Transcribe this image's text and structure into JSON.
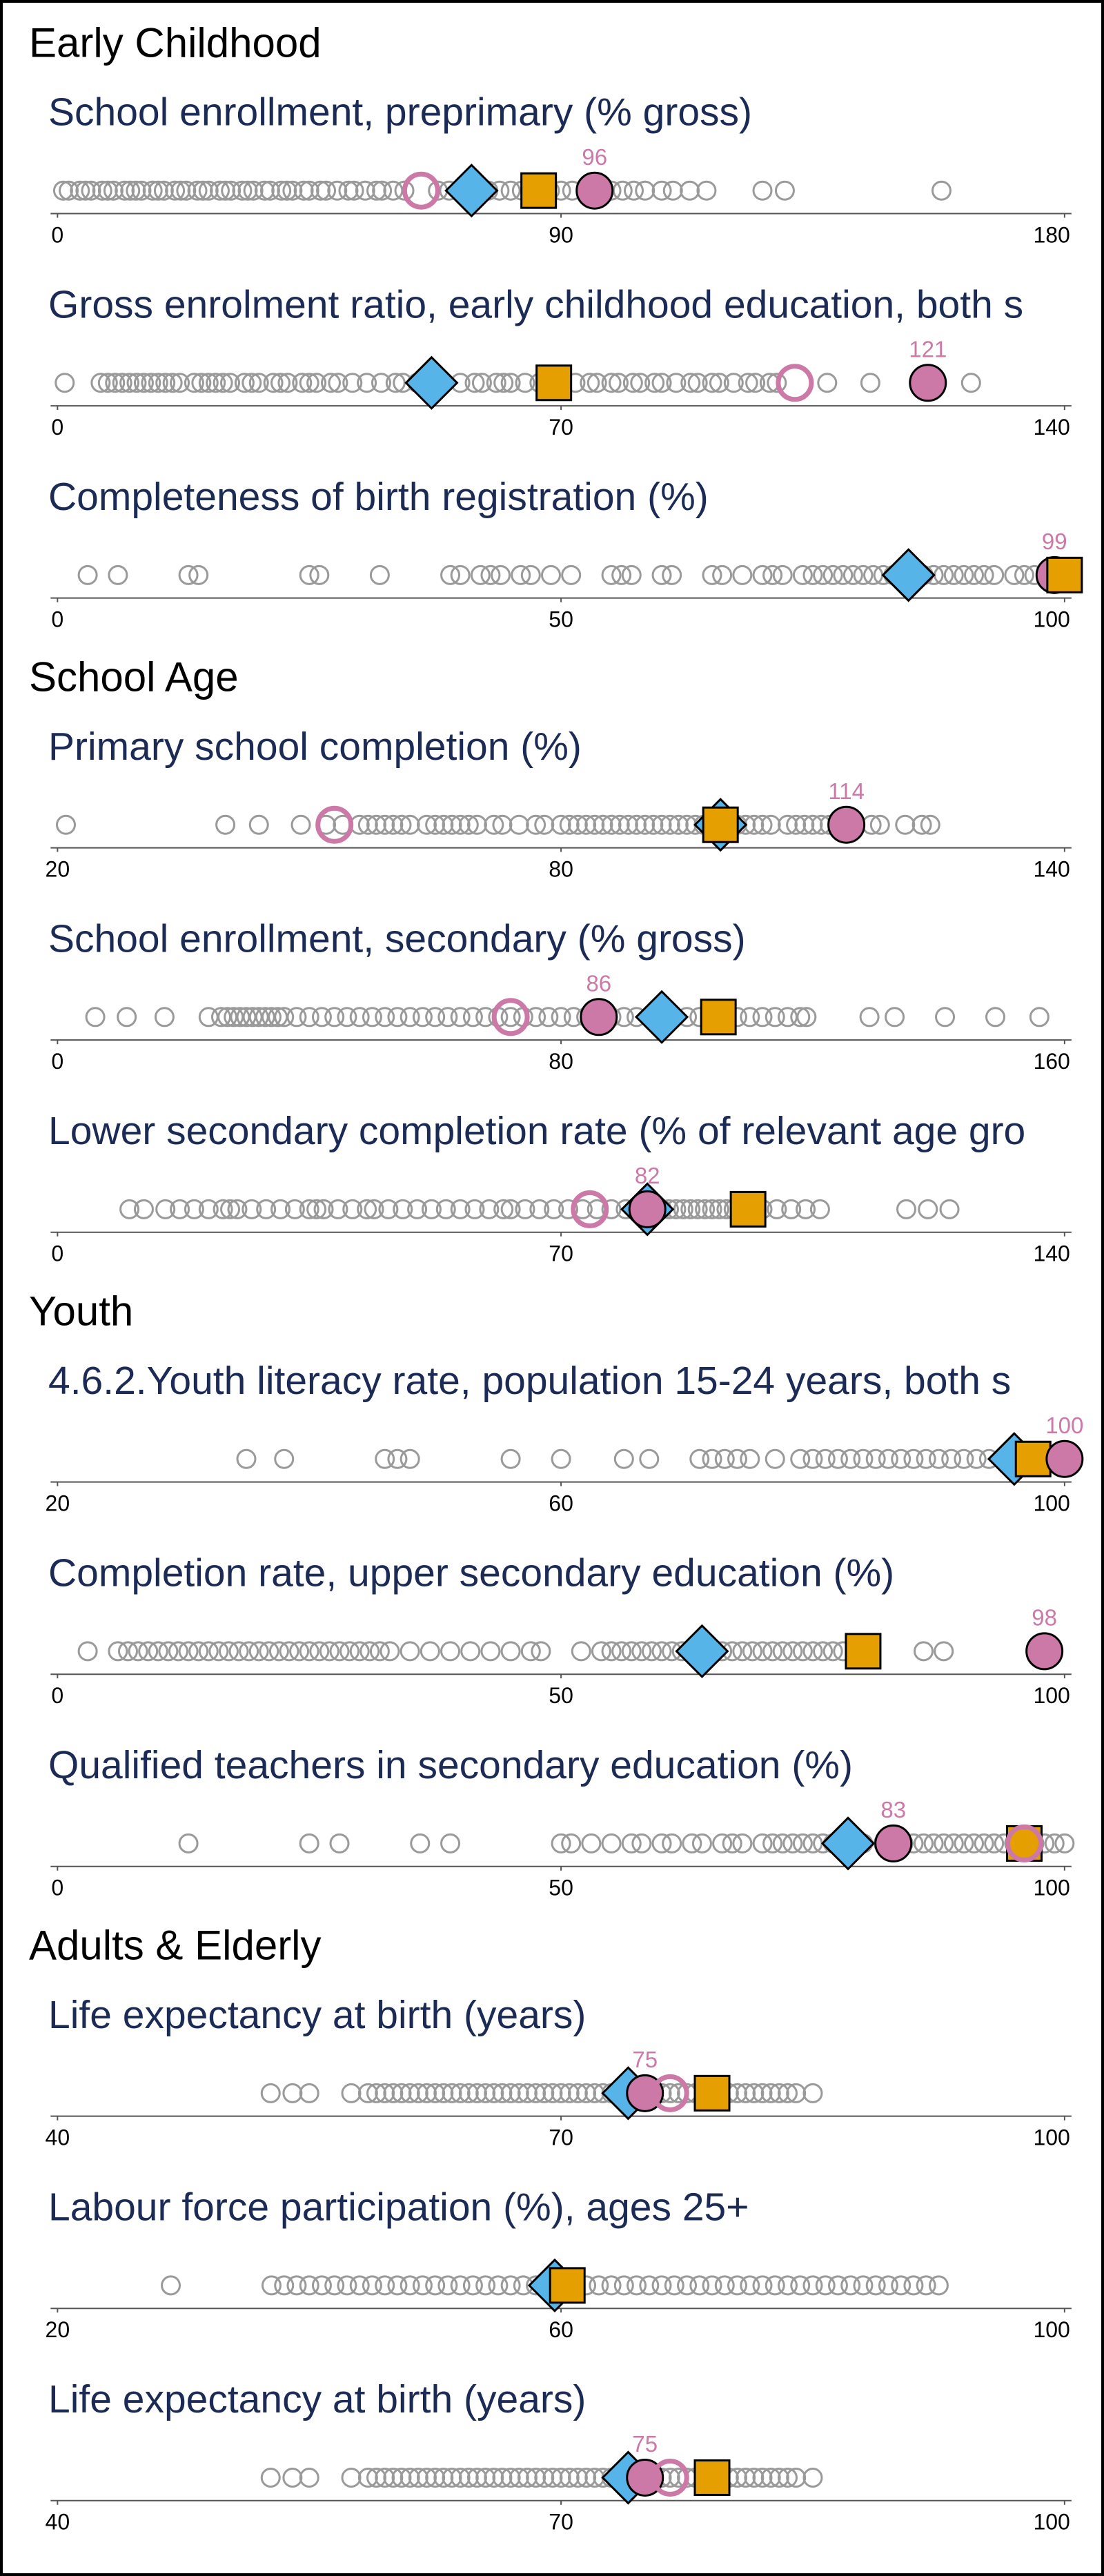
{
  "chart_data": [
    {
      "type": "strip",
      "section": "Early Childhood",
      "title": "School enrollment, preprimary (% gross)",
      "xlim": [
        0,
        180
      ],
      "xticks": [
        0,
        90,
        180
      ],
      "points_color": "#9a9a9a",
      "points": [
        1,
        2,
        4,
        5,
        6,
        8,
        9,
        10,
        12,
        13,
        14,
        15,
        17,
        18,
        19,
        21,
        22,
        23,
        25,
        26,
        27,
        29,
        30,
        31,
        33,
        34,
        35,
        37,
        38,
        40,
        41,
        42,
        44,
        45,
        47,
        48,
        50,
        52,
        53,
        55,
        57,
        58,
        60,
        62,
        68,
        70,
        72,
        75,
        77,
        79,
        81,
        83,
        85,
        88,
        90,
        92,
        99,
        101,
        103,
        105,
        108,
        110,
        113,
        116,
        126,
        130,
        158
      ],
      "series": [
        {
          "marker": "ring",
          "color": "#cc79a7",
          "values": [
            65
          ]
        },
        {
          "marker": "diamond",
          "color": "#56b4e9",
          "values": [
            74
          ]
        },
        {
          "marker": "square",
          "color": "#e69f00",
          "values": [
            86
          ]
        },
        {
          "marker": "circle",
          "color": "#cc79a7",
          "values": [
            96
          ],
          "labeled": true
        }
      ]
    },
    {
      "type": "strip",
      "title": "Gross enrolment ratio, early childhood education, both s",
      "xlim": [
        0,
        140
      ],
      "xticks": [
        0,
        70,
        140
      ],
      "points_color": "#9a9a9a",
      "points": [
        1,
        6,
        7,
        8,
        9,
        10,
        11,
        12,
        13,
        14,
        15,
        16,
        17,
        19,
        20,
        21,
        22,
        23,
        24,
        26,
        27,
        28,
        30,
        31,
        32,
        34,
        35,
        36,
        38,
        39,
        41,
        43,
        45,
        47,
        48,
        50,
        56,
        58,
        59,
        61,
        62,
        63,
        65,
        67,
        72,
        74,
        75,
        77,
        78,
        80,
        81,
        83,
        84,
        86,
        88,
        89,
        91,
        92,
        94,
        96,
        97,
        99,
        100,
        107,
        113,
        127
      ],
      "series": [
        {
          "marker": "ring",
          "color": "#cc79a7",
          "values": [
            102.5
          ]
        },
        {
          "marker": "diamond",
          "color": "#56b4e9",
          "values": [
            52
          ]
        },
        {
          "marker": "square",
          "color": "#e69f00",
          "values": [
            69
          ]
        },
        {
          "marker": "circle",
          "color": "#cc79a7",
          "values": [
            121
          ],
          "labeled": true
        }
      ]
    },
    {
      "type": "strip",
      "title": "Completeness of birth registration (%)",
      "xlim": [
        0,
        100
      ],
      "xticks": [
        0,
        50,
        100
      ],
      "points_color": "#9a9a9a",
      "points": [
        3,
        6,
        13,
        14,
        25,
        26,
        32,
        39,
        40,
        42,
        43,
        44,
        46,
        47,
        49,
        51,
        55,
        56,
        57,
        60,
        61,
        65,
        66,
        68,
        70,
        71,
        72,
        74,
        75,
        76,
        77,
        78,
        79,
        80,
        81,
        82,
        83,
        84,
        85,
        86,
        87,
        88,
        89,
        90,
        91,
        92,
        93,
        95,
        96,
        97,
        99
      ],
      "series": [
        {
          "marker": "diamond",
          "color": "#56b4e9",
          "values": [
            84.5
          ]
        },
        {
          "marker": "circle",
          "color": "#cc79a7",
          "values": [
            99
          ],
          "labeled": true
        },
        {
          "marker": "square",
          "color": "#e69f00",
          "values": [
            100
          ]
        }
      ]
    },
    {
      "type": "strip",
      "section": "School Age",
      "title": "Primary school completion (%)",
      "xlim": [
        20,
        140
      ],
      "xticks": [
        20,
        80,
        140
      ],
      "points_color": "#9a9a9a",
      "points": [
        21,
        40,
        44,
        49,
        52,
        54,
        56,
        57,
        58,
        59,
        60,
        61,
        62,
        64,
        65,
        66,
        67,
        68,
        69,
        70,
        72,
        73,
        75,
        77,
        78,
        80,
        81,
        82,
        83,
        84,
        85,
        86,
        87,
        88,
        89,
        90,
        91,
        92,
        93,
        94,
        95,
        96,
        97,
        98,
        100,
        101,
        102,
        103,
        104,
        105,
        107,
        108,
        109,
        110,
        111,
        112,
        113,
        115,
        117,
        118,
        121,
        123,
        124
      ],
      "series": [
        {
          "marker": "ring",
          "color": "#cc79a7",
          "values": [
            53
          ]
        },
        {
          "marker": "diamond",
          "color": "#56b4e9",
          "values": [
            99
          ]
        },
        {
          "marker": "square",
          "color": "#e69f00",
          "values": [
            99
          ]
        },
        {
          "marker": "circle",
          "color": "#cc79a7",
          "values": [
            114
          ],
          "labeled": true
        }
      ]
    },
    {
      "type": "strip",
      "title": "School enrollment, secondary (% gross)",
      "xlim": [
        0,
        160
      ],
      "xticks": [
        0,
        80,
        160
      ],
      "points_color": "#9a9a9a",
      "points": [
        6,
        11,
        17,
        24,
        26,
        27,
        28,
        29,
        30,
        31,
        32,
        33,
        34,
        35,
        36,
        38,
        40,
        42,
        44,
        46,
        48,
        50,
        52,
        54,
        56,
        58,
        60,
        62,
        64,
        66,
        68,
        70,
        72,
        74,
        76,
        78,
        80,
        82,
        84,
        86,
        88,
        90,
        92,
        94,
        96,
        98,
        100,
        102,
        104,
        106,
        108,
        110,
        112,
        114,
        116,
        118,
        119,
        129,
        133,
        141,
        149,
        156
      ],
      "series": [
        {
          "marker": "ring",
          "color": "#cc79a7",
          "values": [
            72
          ]
        },
        {
          "marker": "circle",
          "color": "#cc79a7",
          "values": [
            86
          ],
          "labeled": true
        },
        {
          "marker": "diamond",
          "color": "#56b4e9",
          "values": [
            96
          ]
        },
        {
          "marker": "square",
          "color": "#e69f00",
          "values": [
            105
          ]
        }
      ]
    },
    {
      "type": "strip",
      "title": "Lower secondary completion rate (% of relevant age gro",
      "xlim": [
        0,
        140
      ],
      "xticks": [
        0,
        70,
        140
      ],
      "points_color": "#9a9a9a",
      "points": [
        10,
        12,
        15,
        17,
        19,
        21,
        23,
        24,
        25,
        27,
        29,
        31,
        33,
        35,
        36,
        37,
        39,
        41,
        43,
        44,
        46,
        48,
        50,
        52,
        54,
        56,
        58,
        60,
        62,
        63,
        65,
        67,
        69,
        71,
        73,
        75,
        77,
        79,
        81,
        83,
        84,
        85,
        86,
        87,
        88,
        89,
        90,
        91,
        92,
        93,
        94,
        95,
        96,
        97,
        98,
        100,
        102,
        104,
        106,
        118,
        121,
        124
      ],
      "series": [
        {
          "marker": "ring",
          "color": "#cc79a7",
          "values": [
            74
          ]
        },
        {
          "marker": "diamond",
          "color": "#56b4e9",
          "values": [
            82
          ]
        },
        {
          "marker": "circle",
          "color": "#cc79a7",
          "values": [
            82
          ],
          "labeled": true
        },
        {
          "marker": "square",
          "color": "#e69f00",
          "values": [
            96
          ]
        }
      ]
    },
    {
      "type": "strip",
      "section": "Youth",
      "title": "4.6.2.Youth literacy rate, population 15-24 years, both s",
      "xlim": [
        20,
        100
      ],
      "xticks": [
        20,
        60,
        100
      ],
      "points_color": "#9a9a9a",
      "points": [
        35,
        38,
        46,
        47,
        48,
        56,
        60,
        65,
        67,
        71,
        72,
        73,
        74,
        75,
        77,
        79,
        80,
        81,
        82,
        83,
        84,
        85,
        86,
        87,
        88,
        89,
        90,
        91,
        92,
        93,
        94,
        95,
        96,
        97,
        98,
        99
      ],
      "series": [
        {
          "marker": "diamond",
          "color": "#56b4e9",
          "values": [
            96
          ]
        },
        {
          "marker": "square",
          "color": "#e69f00",
          "values": [
            97.5
          ]
        },
        {
          "marker": "circle",
          "color": "#cc79a7",
          "values": [
            100
          ],
          "labeled": true
        }
      ]
    },
    {
      "type": "strip",
      "title": "Completion rate, upper secondary education (%)",
      "xlim": [
        0,
        100
      ],
      "xticks": [
        0,
        50,
        100
      ],
      "points_color": "#9a9a9a",
      "points": [
        3,
        6,
        7,
        8,
        9,
        10,
        11,
        12,
        13,
        14,
        15,
        16,
        17,
        18,
        19,
        20,
        21,
        22,
        23,
        24,
        25,
        26,
        27,
        28,
        29,
        30,
        31,
        32,
        33,
        35,
        37,
        39,
        41,
        43,
        45,
        47,
        48,
        52,
        54,
        55,
        56,
        57,
        58,
        59,
        60,
        61,
        62,
        63,
        65,
        66,
        67,
        68,
        69,
        70,
        71,
        72,
        73,
        74,
        75,
        76,
        77,
        78,
        86,
        88
      ],
      "series": [
        {
          "marker": "diamond",
          "color": "#56b4e9",
          "values": [
            64
          ]
        },
        {
          "marker": "square",
          "color": "#e69f00",
          "values": [
            80
          ]
        },
        {
          "marker": "circle",
          "color": "#cc79a7",
          "values": [
            98
          ],
          "labeled": true
        }
      ]
    },
    {
      "type": "strip",
      "title": "Qualified teachers in secondary education (%)",
      "xlim": [
        0,
        100
      ],
      "xticks": [
        0,
        50,
        100
      ],
      "points_color": "#9a9a9a",
      "points": [
        13,
        25,
        28,
        36,
        39,
        50,
        51,
        53,
        55,
        57,
        58,
        60,
        61,
        63,
        64,
        66,
        67,
        68,
        70,
        71,
        72,
        73,
        74,
        75,
        76,
        77,
        78,
        80,
        82,
        84,
        85,
        86,
        87,
        88,
        89,
        90,
        91,
        92,
        93,
        94,
        95,
        96,
        97,
        98,
        99,
        100
      ],
      "series": [
        {
          "marker": "square",
          "color": "#e69f00",
          "values": [
            96
          ]
        },
        {
          "marker": "ring",
          "color": "#cc79a7",
          "values": [
            96
          ]
        },
        {
          "marker": "diamond",
          "color": "#56b4e9",
          "values": [
            78.5
          ]
        },
        {
          "marker": "circle",
          "color": "#cc79a7",
          "values": [
            83
          ],
          "labeled": true
        }
      ]
    },
    {
      "type": "strip",
      "section": "Adults & Elderly",
      "title": "Life expectancy at birth (years)",
      "xlim": [
        40,
        100
      ],
      "xticks": [
        40,
        70,
        100
      ],
      "points_color": "#9a9a9a",
      "points": [
        52.7,
        54,
        55,
        57.5,
        58.5,
        59,
        59.5,
        60,
        60.5,
        61,
        61.5,
        62,
        62.5,
        63,
        63.5,
        64,
        64.5,
        65,
        65.5,
        66,
        66.5,
        67,
        67.5,
        68,
        68.5,
        69,
        69.5,
        70,
        70.5,
        71,
        71.5,
        72,
        72.5,
        73,
        73.5,
        74,
        74.5,
        75,
        75.5,
        76,
        76.5,
        77,
        77.5,
        78,
        78.5,
        79,
        79.5,
        80,
        80.5,
        81,
        81.5,
        82,
        82.5,
        83,
        83.5,
        84,
        85
      ],
      "series": [
        {
          "marker": "diamond",
          "color": "#56b4e9",
          "values": [
            74
          ]
        },
        {
          "marker": "circle",
          "color": "#cc79a7",
          "values": [
            75
          ],
          "labeled": true
        },
        {
          "marker": "ring",
          "color": "#cc79a7",
          "values": [
            76.5
          ]
        },
        {
          "marker": "square",
          "color": "#e69f00",
          "values": [
            79
          ]
        }
      ]
    },
    {
      "type": "strip",
      "title": "Labour force participation (%), ages 25+",
      "xlim": [
        20,
        100
      ],
      "xticks": [
        20,
        60,
        100
      ],
      "points_color": "#9a9a9a",
      "points": [
        29,
        37,
        38,
        39,
        40,
        41,
        42,
        43,
        44,
        45,
        46,
        47,
        48,
        49,
        50,
        51,
        52,
        53,
        54,
        55,
        56,
        57,
        58,
        59,
        60,
        61,
        62,
        63,
        64,
        65,
        66,
        67,
        68,
        69,
        70,
        71,
        72,
        73,
        74,
        75,
        76,
        77,
        78,
        79,
        80,
        81,
        82,
        83,
        84,
        85,
        86,
        87,
        88,
        89,
        90
      ],
      "series": [
        {
          "marker": "diamond",
          "color": "#56b4e9",
          "values": [
            59.5
          ]
        },
        {
          "marker": "square",
          "color": "#e69f00",
          "values": [
            60.5
          ]
        }
      ]
    },
    {
      "type": "strip",
      "title": "Life expectancy at birth (years)",
      "xlim": [
        40,
        100
      ],
      "xticks": [
        40,
        70,
        100
      ],
      "points_color": "#9a9a9a",
      "points": [
        52.7,
        54,
        55,
        57.5,
        58.5,
        59,
        59.5,
        60,
        60.5,
        61,
        61.5,
        62,
        62.5,
        63,
        63.5,
        64,
        64.5,
        65,
        65.5,
        66,
        66.5,
        67,
        67.5,
        68,
        68.5,
        69,
        69.5,
        70,
        70.5,
        71,
        71.5,
        72,
        72.5,
        73,
        73.5,
        74,
        74.5,
        75,
        75.5,
        76,
        76.5,
        77,
        77.5,
        78,
        78.5,
        79,
        79.5,
        80,
        80.5,
        81,
        81.5,
        82,
        82.5,
        83,
        83.5,
        84,
        85
      ],
      "series": [
        {
          "marker": "diamond",
          "color": "#56b4e9",
          "values": [
            74
          ]
        },
        {
          "marker": "circle",
          "color": "#cc79a7",
          "values": [
            75
          ],
          "labeled": true
        },
        {
          "marker": "ring",
          "color": "#cc79a7",
          "values": [
            76.5
          ]
        },
        {
          "marker": "square",
          "color": "#e69f00",
          "values": [
            79
          ]
        }
      ]
    }
  ]
}
